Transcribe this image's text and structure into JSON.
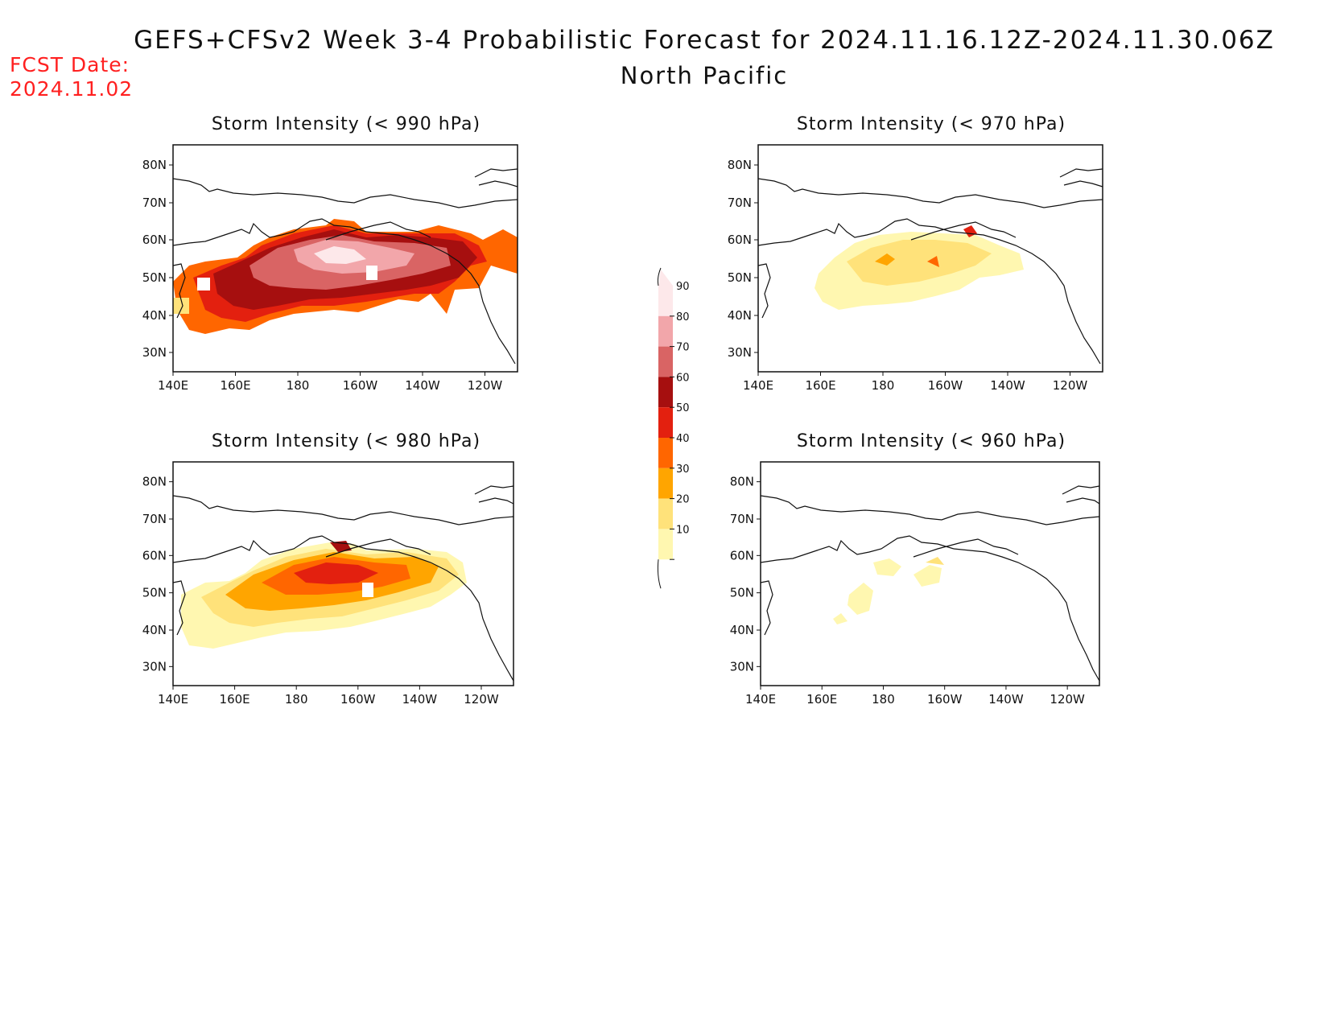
{
  "header": {
    "fcst_label": "FCST Date:",
    "fcst_date": "2024.11.02",
    "title": "GEFS+CFSv2 Week 3-4 Probabilistic Forecast for 2024.11.16.12Z-2024.11.30.06Z",
    "region": "North Pacific"
  },
  "axes": {
    "lat_ticks": [
      "80N",
      "70N",
      "60N",
      "50N",
      "40N",
      "30N"
    ],
    "lon_ticks": [
      "140E",
      "160E",
      "180",
      "160W",
      "140W",
      "120W"
    ]
  },
  "panels": [
    {
      "id": "p990",
      "title": "Storm Intensity (< 990 hPa)"
    },
    {
      "id": "p970",
      "title": "Storm Intensity (< 970 hPa)"
    },
    {
      "id": "p980",
      "title": "Storm Intensity (< 980 hPa)"
    },
    {
      "id": "p960",
      "title": "Storm Intensity (< 960 hPa)"
    }
  ],
  "colorbar": {
    "labels": [
      "90",
      "80",
      "70",
      "60",
      "50",
      "40",
      "30",
      "20",
      "10"
    ],
    "colors": [
      "#fde8ea",
      "#f2a6aa",
      "#d96464",
      "#a60f0f",
      "#e3200f",
      "#ff6600",
      "#ffa500",
      "#ffe27a",
      "#fff7b0"
    ]
  }
}
